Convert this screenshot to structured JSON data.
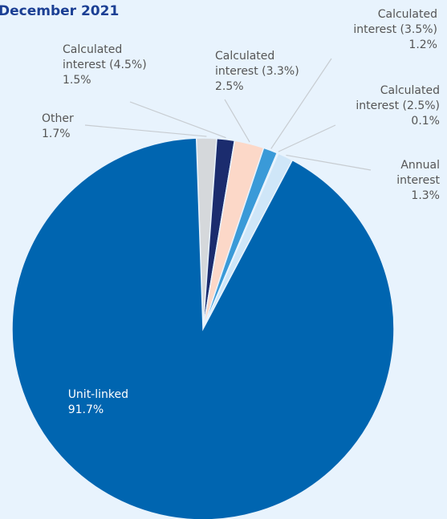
{
  "chart_data": {
    "type": "pie",
    "title": "December 2021",
    "slices": [
      {
        "label": [
          "Other"
        ],
        "value": 1.7,
        "display": "1.7%",
        "color": "#d5d8db"
      },
      {
        "label": [
          "Calculated",
          "interest (4.5%)"
        ],
        "value": 1.5,
        "display": "1.5%",
        "color": "#1b2c6e"
      },
      {
        "label": [
          "Calculated",
          "interest (3.3%)"
        ],
        "value": 2.5,
        "display": "2.5%",
        "color": "#fcd8c8"
      },
      {
        "label": [
          "Calculated",
          "interest (3.5%)"
        ],
        "value": 1.2,
        "display": "1.2%",
        "color": "#3a9ad8"
      },
      {
        "label": [
          "Calculated",
          "interest (2.5%)"
        ],
        "value": 0.1,
        "display": "0.1%",
        "color": "#7fc1ea"
      },
      {
        "label": [
          "Annual",
          "interest"
        ],
        "value": 1.3,
        "display": "1.3%",
        "color": "#cfe6f8"
      },
      {
        "label": [
          "Unit-linked"
        ],
        "value": 91.7,
        "display": "91.7%",
        "color": "#0065b0"
      }
    ]
  }
}
